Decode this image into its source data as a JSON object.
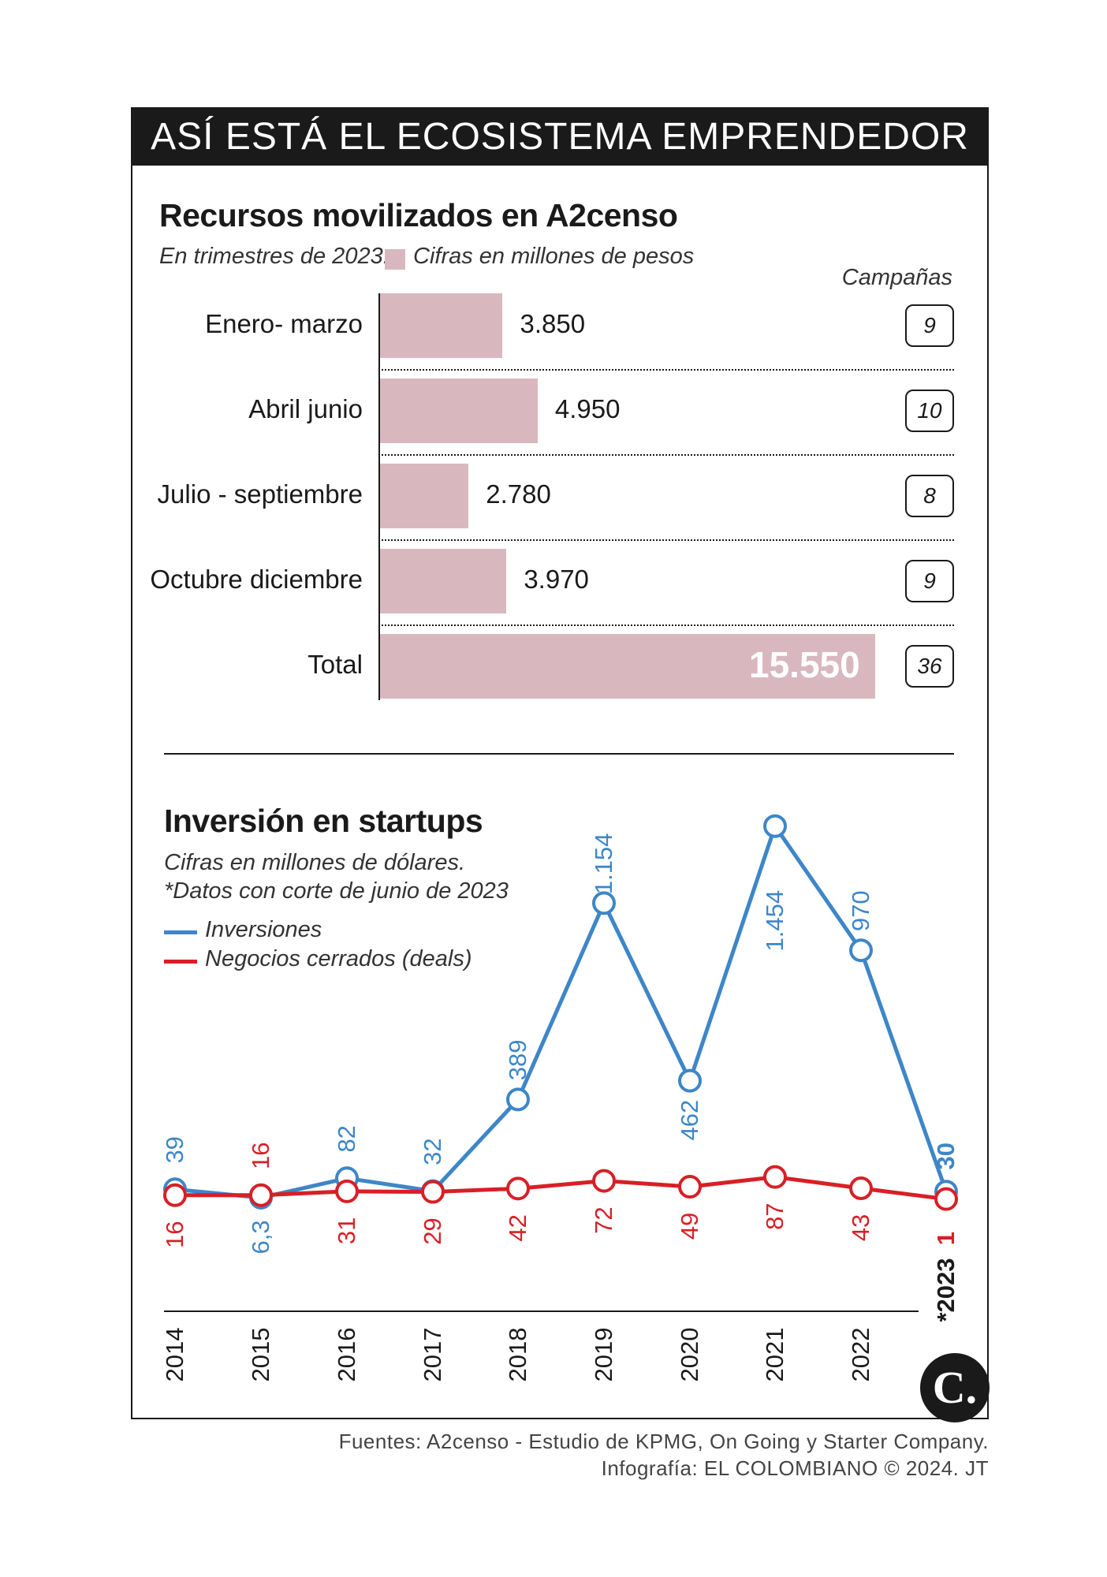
{
  "header": {
    "title": "ASÍ ESTÁ EL ECOSISTEMA EMPRENDEDOR"
  },
  "colors": {
    "bar": "#d8b8be",
    "blue": "#3d86c8",
    "red": "#d81f26",
    "dark": "#1a1a1a"
  },
  "chart_data": [
    {
      "type": "bar",
      "title": "Recursos movilizados en A2censo",
      "subtitle_prefix": "En trimestres de 2023.",
      "subtitle_legend": "Cifras en millones de pesos",
      "campaigns_label": "Campañas",
      "categories": [
        "Enero- marzo",
        "Abril junio",
        "Julio - septiembre",
        "Octubre diciembre",
        "Total"
      ],
      "values": [
        3850,
        4950,
        2780,
        3970,
        15550
      ],
      "value_labels": [
        "3.850",
        "4.950",
        "2.780",
        "3.970",
        "15.550"
      ],
      "campaigns": [
        "9",
        "10",
        "8",
        "9",
        "36"
      ]
    },
    {
      "type": "line",
      "title": "Inversión en startups",
      "subtitle_lines": [
        "Cifras en millones de dólares.",
        "*Datos con corte de junio de 2023"
      ],
      "x": [
        "2014",
        "2015",
        "2016",
        "2017",
        "2018",
        "2019",
        "2020",
        "2021",
        "2022",
        "*2023"
      ],
      "series": [
        {
          "name": "Inversiones",
          "color": "#3d86c8",
          "values": [
            39,
            6.3,
            82,
            32,
            389,
            1154,
            462,
            1454,
            970,
            30
          ],
          "labels": [
            "39",
            "6,3",
            "82",
            "32",
            "389",
            "1.154",
            "462",
            "1.454",
            "970",
            "30"
          ]
        },
        {
          "name": "Negocios cerrados (deals)",
          "color": "#d81f26",
          "values": [
            16,
            16,
            31,
            29,
            42,
            72,
            49,
            87,
            43,
            1
          ],
          "labels": [
            "16",
            "16",
            "31",
            "29",
            "42",
            "72",
            "49",
            "87",
            "43",
            "1"
          ]
        }
      ]
    }
  ],
  "footer": {
    "sources": "Fuentes: A2censo - Estudio de KPMG, On Going y Starter Company.",
    "credit": "Infografía: EL COLOMBIANO © 2024. JT"
  },
  "logo": {
    "letter": "C."
  }
}
